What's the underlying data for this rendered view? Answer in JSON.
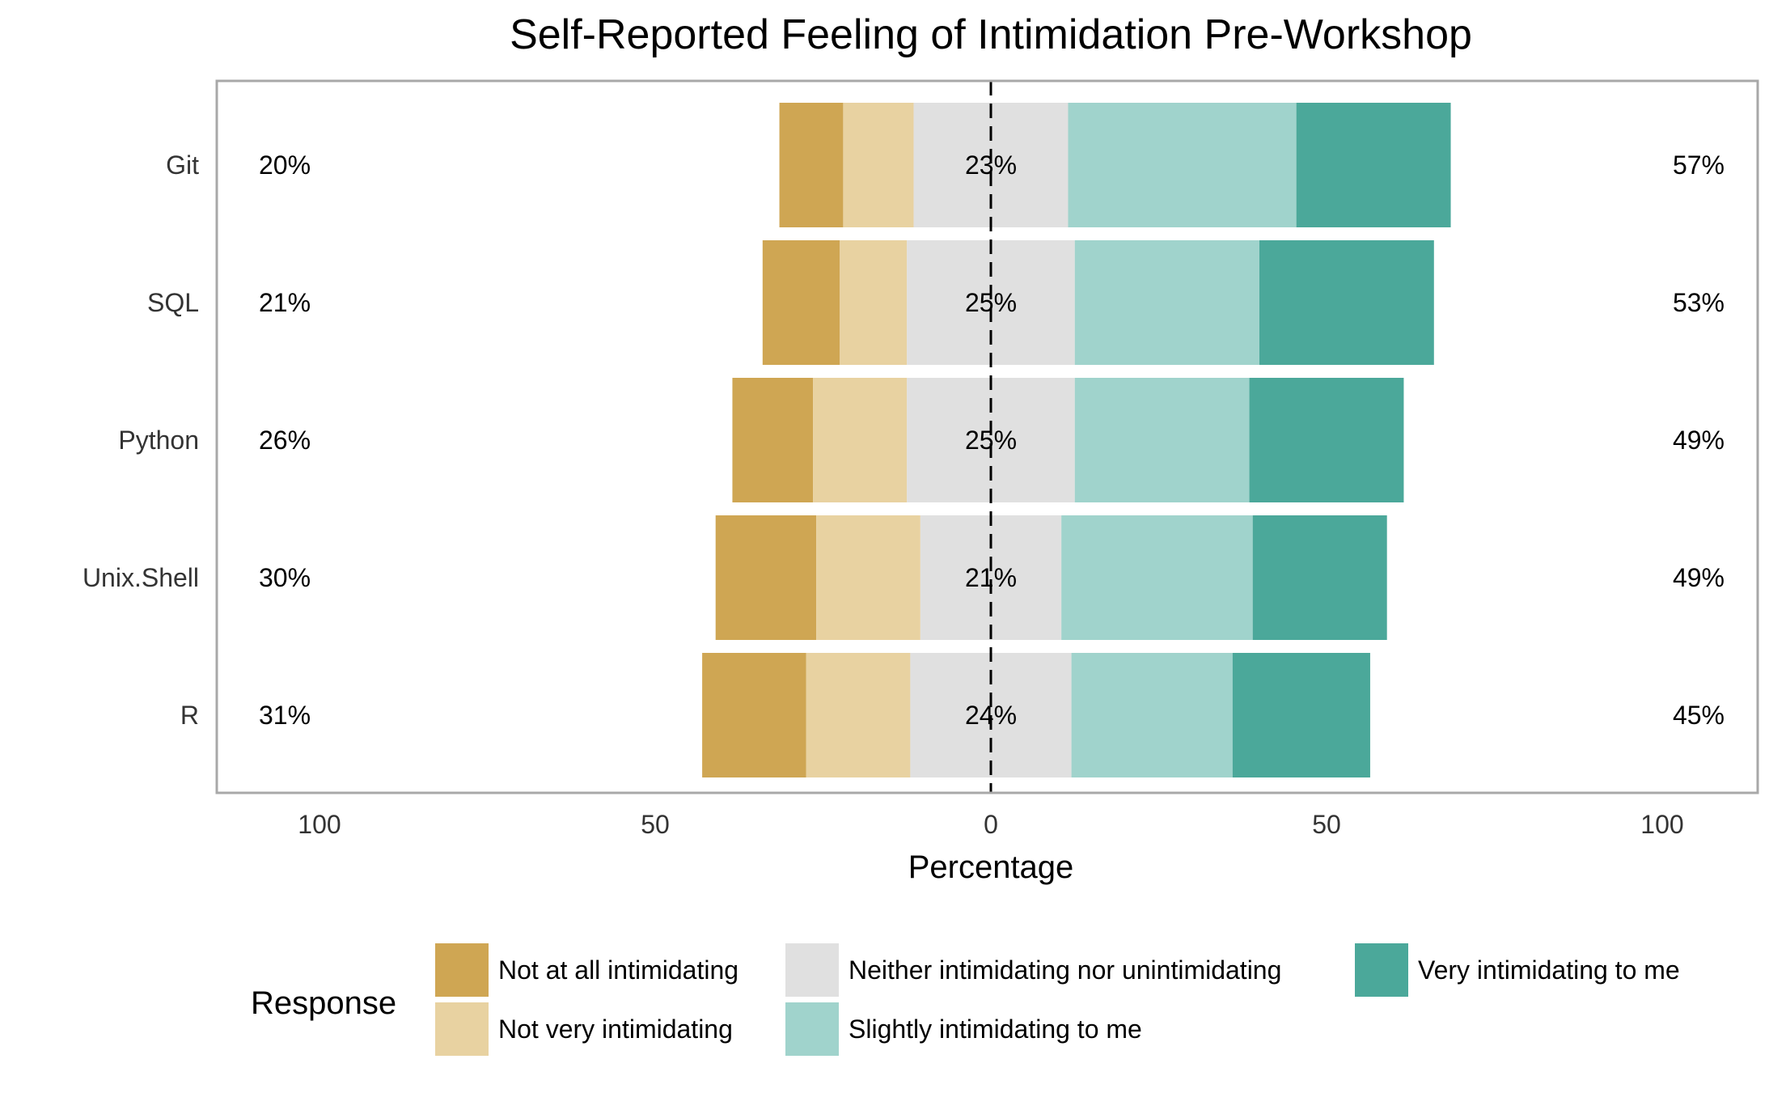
{
  "chart_data": {
    "type": "bar",
    "orientation": "horizontal",
    "stacking": "diverging",
    "title": "Self-Reported Feeling of Intimidation Pre-Workshop",
    "xlabel": "Percentage",
    "ylabel": "",
    "xlim": [
      -100,
      100
    ],
    "xticks": [
      -100,
      -50,
      0,
      50,
      100
    ],
    "xtick_labels": [
      "100",
      "50",
      "0",
      "50",
      "100"
    ],
    "grid": true,
    "legend_title": "Response",
    "legend_position": "bottom",
    "categories": [
      "Git",
      "SQL",
      "Python",
      "Unix.Shell",
      "R"
    ],
    "series": [
      {
        "name": "Not at all intimidating",
        "color": "#CFA653",
        "values": [
          9.5,
          11.5,
          12,
          15,
          15.5
        ]
      },
      {
        "name": "Not very intimidating",
        "color": "#E8D2A1",
        "values": [
          10.5,
          10,
          14,
          15.5,
          15.5
        ]
      },
      {
        "name": "Neither intimidating nor unintimidating",
        "color": "#E0E0E0",
        "values": [
          23,
          25,
          25,
          21,
          24
        ]
      },
      {
        "name": "Slightly intimidating to me",
        "color": "#A0D3CC",
        "values": [
          34,
          27.5,
          26,
          28.5,
          24
        ]
      },
      {
        "name": "Very intimidating to me",
        "color": "#4BA89A",
        "values": [
          23,
          26,
          23,
          20,
          20.5
        ]
      }
    ],
    "left_percent_labels": [
      "20%",
      "21%",
      "26%",
      "30%",
      "31%"
    ],
    "center_percent_labels": [
      "23%",
      "25%",
      "25%",
      "21%",
      "24%"
    ],
    "right_percent_labels": [
      "57%",
      "53%",
      "49%",
      "49%",
      "45%"
    ]
  }
}
